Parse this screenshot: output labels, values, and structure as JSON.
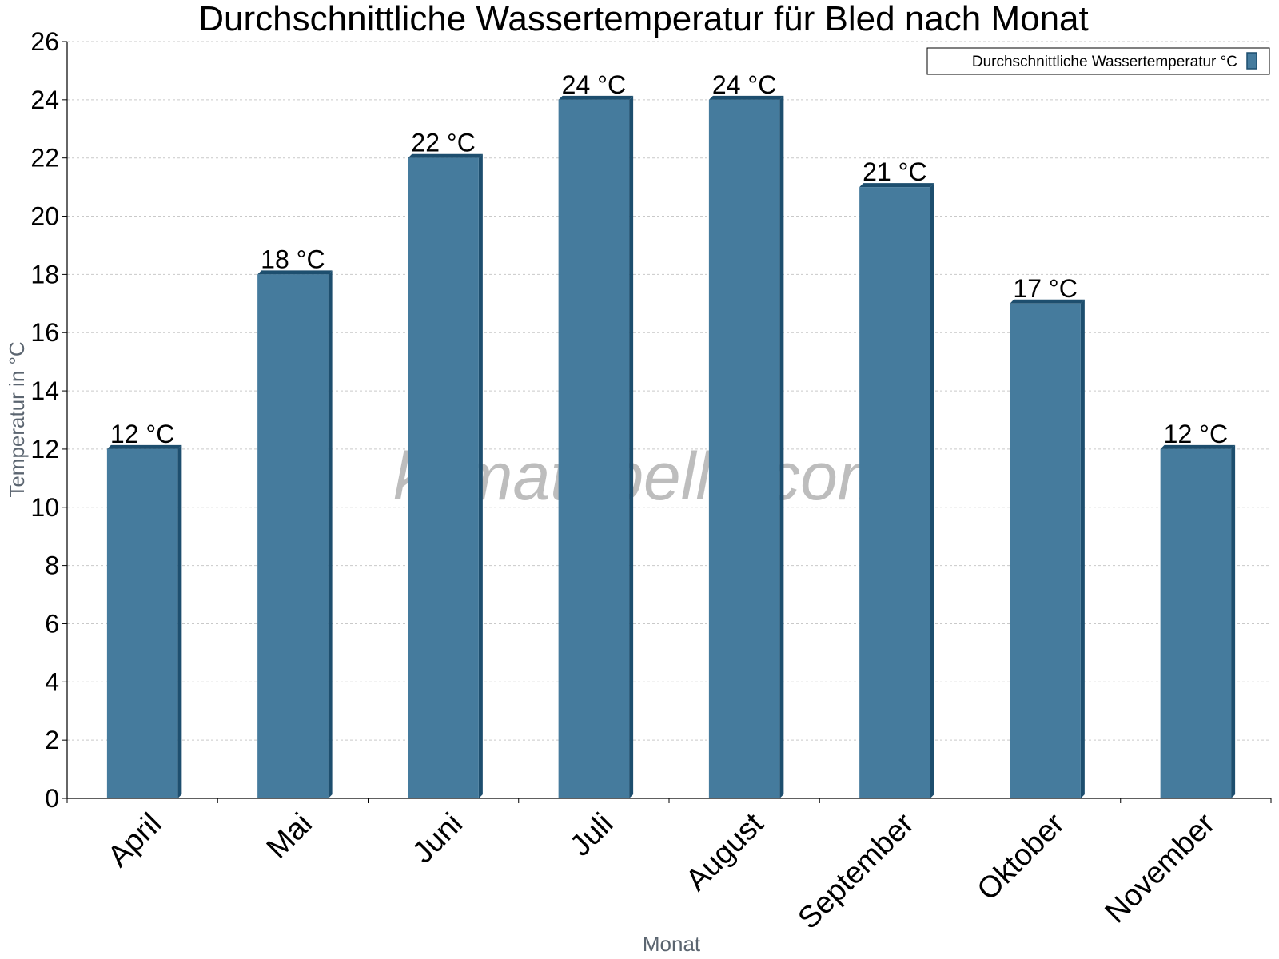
{
  "chart_data": {
    "type": "bar",
    "title": "Durchschnittliche Wassertemperatur für Bled nach Monat",
    "xlabel": "Monat",
    "ylabel": "Temperatur in °C",
    "categories": [
      "April",
      "Mai",
      "Juni",
      "Juli",
      "August",
      "September",
      "Oktober",
      "November"
    ],
    "series": [
      {
        "name": "Durchschnittliche Wassertemperatur °C",
        "values": [
          12,
          18,
          22,
          24,
          24,
          21,
          17,
          12
        ],
        "labels": [
          "12 °C",
          "18 °C",
          "22 °C",
          "24 °C",
          "24 °C",
          "21 °C",
          "17 °C",
          "12 °C"
        ]
      }
    ],
    "ylim": [
      0,
      26
    ],
    "yticks": [
      "0",
      "2",
      "4",
      "6",
      "8",
      "10",
      "12",
      "14",
      "16",
      "18",
      "20",
      "22",
      "24",
      "26"
    ],
    "grid": true,
    "legend_position": "top-right",
    "bar_color": "#457b9d",
    "bar_edge_color": "#1d4e6e",
    "watermark": "klimatabelle.com"
  }
}
